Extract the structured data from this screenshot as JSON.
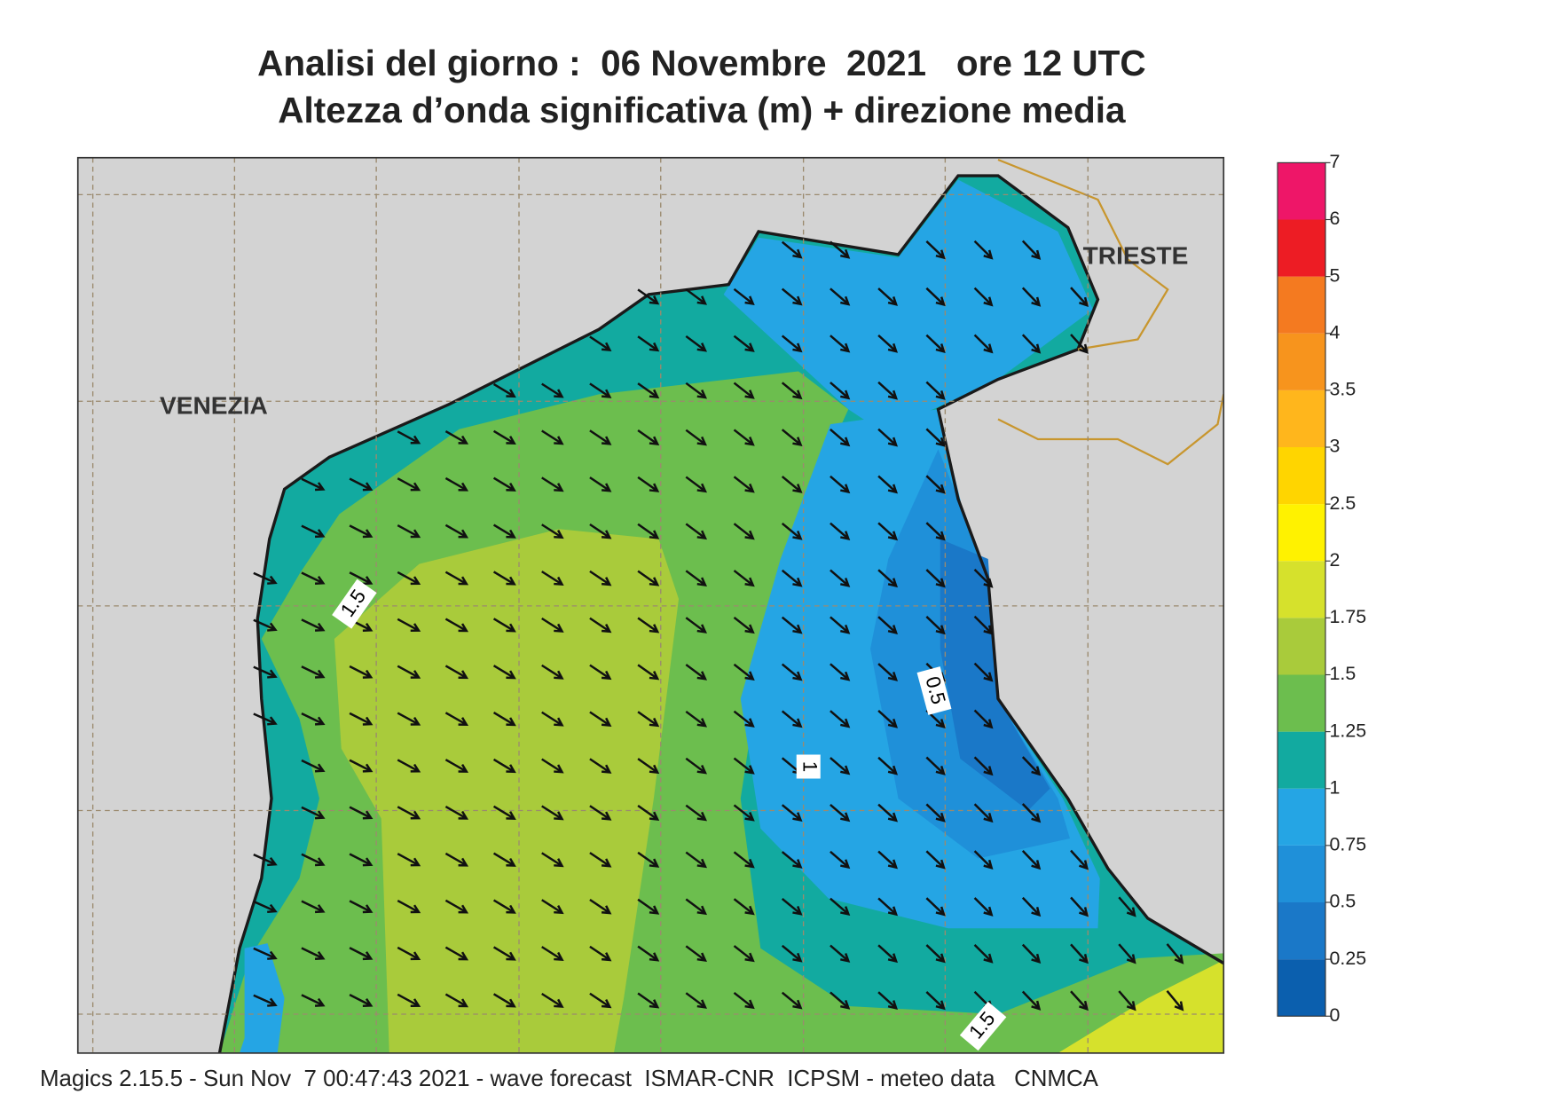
{
  "header": {
    "title": "Analisi del giorno :  06 Novembre  2021   ore 12 UTC",
    "subtitle": "Altezza d’onda significativa (m) + direzione media"
  },
  "map": {
    "cities": [
      "VENEZIA",
      "TRIESTE"
    ],
    "contour_labels": [
      "1.5",
      "0.5",
      "1",
      "1.5"
    ]
  },
  "colorbar": {
    "levels": [
      0,
      0.25,
      0.5,
      0.75,
      1,
      1.25,
      1.5,
      1.75,
      2,
      2.5,
      3,
      3.5,
      4,
      5,
      6,
      7
    ],
    "colors": [
      "#0b5fae",
      "#1a78c8",
      "#1f90d9",
      "#25a5e4",
      "#12aaa0",
      "#6cbe4e",
      "#a9cb3b",
      "#d6e12c",
      "#fff200",
      "#ffd500",
      "#ffb61c",
      "#f7941d",
      "#f47a20",
      "#ed1c24",
      "#ee1668"
    ]
  },
  "footer": "Magics 2.15.5 - Sun Nov  7 00:47:43 2021 - wave forecast  ISMAR-CNR  ICPSM - meteo data   CNMCA"
}
